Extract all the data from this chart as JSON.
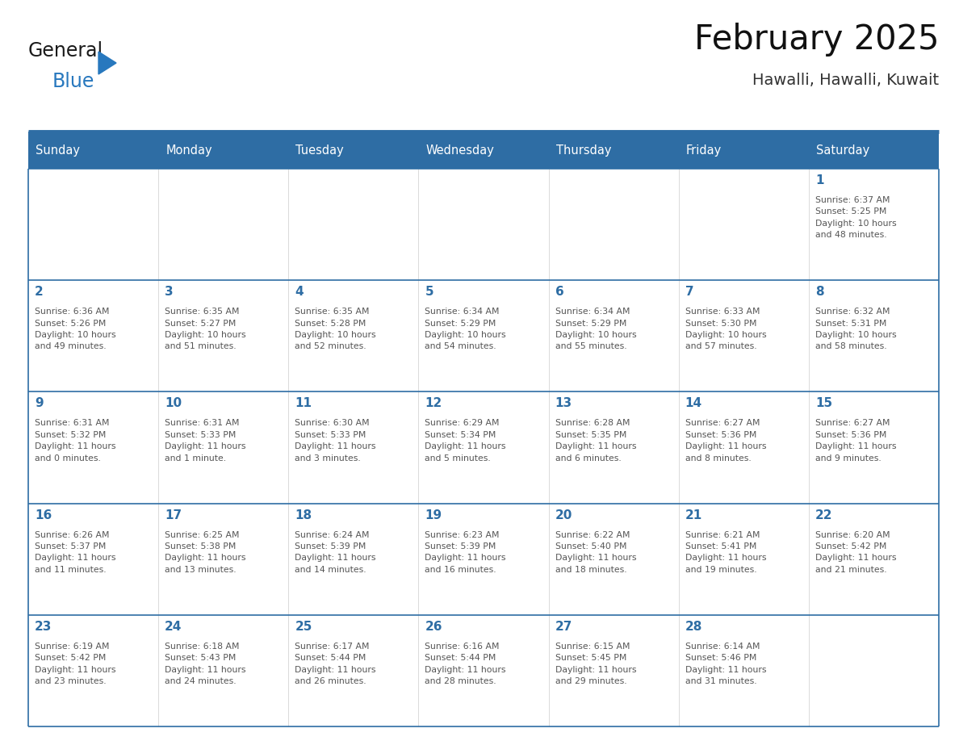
{
  "title": "February 2025",
  "subtitle": "Hawalli, Hawalli, Kuwait",
  "header_bg_color": "#2E6DA4",
  "header_text_color": "#FFFFFF",
  "cell_bg_color": "#FFFFFF",
  "day_number_color": "#2E6DA4",
  "info_text_color": "#555555",
  "border_color": "#2E6DA4",
  "days_of_week": [
    "Sunday",
    "Monday",
    "Tuesday",
    "Wednesday",
    "Thursday",
    "Friday",
    "Saturday"
  ],
  "weeks": [
    [
      {
        "day": 0,
        "info": ""
      },
      {
        "day": 0,
        "info": ""
      },
      {
        "day": 0,
        "info": ""
      },
      {
        "day": 0,
        "info": ""
      },
      {
        "day": 0,
        "info": ""
      },
      {
        "day": 0,
        "info": ""
      },
      {
        "day": 1,
        "info": "Sunrise: 6:37 AM\nSunset: 5:25 PM\nDaylight: 10 hours\nand 48 minutes."
      }
    ],
    [
      {
        "day": 2,
        "info": "Sunrise: 6:36 AM\nSunset: 5:26 PM\nDaylight: 10 hours\nand 49 minutes."
      },
      {
        "day": 3,
        "info": "Sunrise: 6:35 AM\nSunset: 5:27 PM\nDaylight: 10 hours\nand 51 minutes."
      },
      {
        "day": 4,
        "info": "Sunrise: 6:35 AM\nSunset: 5:28 PM\nDaylight: 10 hours\nand 52 minutes."
      },
      {
        "day": 5,
        "info": "Sunrise: 6:34 AM\nSunset: 5:29 PM\nDaylight: 10 hours\nand 54 minutes."
      },
      {
        "day": 6,
        "info": "Sunrise: 6:34 AM\nSunset: 5:29 PM\nDaylight: 10 hours\nand 55 minutes."
      },
      {
        "day": 7,
        "info": "Sunrise: 6:33 AM\nSunset: 5:30 PM\nDaylight: 10 hours\nand 57 minutes."
      },
      {
        "day": 8,
        "info": "Sunrise: 6:32 AM\nSunset: 5:31 PM\nDaylight: 10 hours\nand 58 minutes."
      }
    ],
    [
      {
        "day": 9,
        "info": "Sunrise: 6:31 AM\nSunset: 5:32 PM\nDaylight: 11 hours\nand 0 minutes."
      },
      {
        "day": 10,
        "info": "Sunrise: 6:31 AM\nSunset: 5:33 PM\nDaylight: 11 hours\nand 1 minute."
      },
      {
        "day": 11,
        "info": "Sunrise: 6:30 AM\nSunset: 5:33 PM\nDaylight: 11 hours\nand 3 minutes."
      },
      {
        "day": 12,
        "info": "Sunrise: 6:29 AM\nSunset: 5:34 PM\nDaylight: 11 hours\nand 5 minutes."
      },
      {
        "day": 13,
        "info": "Sunrise: 6:28 AM\nSunset: 5:35 PM\nDaylight: 11 hours\nand 6 minutes."
      },
      {
        "day": 14,
        "info": "Sunrise: 6:27 AM\nSunset: 5:36 PM\nDaylight: 11 hours\nand 8 minutes."
      },
      {
        "day": 15,
        "info": "Sunrise: 6:27 AM\nSunset: 5:36 PM\nDaylight: 11 hours\nand 9 minutes."
      }
    ],
    [
      {
        "day": 16,
        "info": "Sunrise: 6:26 AM\nSunset: 5:37 PM\nDaylight: 11 hours\nand 11 minutes."
      },
      {
        "day": 17,
        "info": "Sunrise: 6:25 AM\nSunset: 5:38 PM\nDaylight: 11 hours\nand 13 minutes."
      },
      {
        "day": 18,
        "info": "Sunrise: 6:24 AM\nSunset: 5:39 PM\nDaylight: 11 hours\nand 14 minutes."
      },
      {
        "day": 19,
        "info": "Sunrise: 6:23 AM\nSunset: 5:39 PM\nDaylight: 11 hours\nand 16 minutes."
      },
      {
        "day": 20,
        "info": "Sunrise: 6:22 AM\nSunset: 5:40 PM\nDaylight: 11 hours\nand 18 minutes."
      },
      {
        "day": 21,
        "info": "Sunrise: 6:21 AM\nSunset: 5:41 PM\nDaylight: 11 hours\nand 19 minutes."
      },
      {
        "day": 22,
        "info": "Sunrise: 6:20 AM\nSunset: 5:42 PM\nDaylight: 11 hours\nand 21 minutes."
      }
    ],
    [
      {
        "day": 23,
        "info": "Sunrise: 6:19 AM\nSunset: 5:42 PM\nDaylight: 11 hours\nand 23 minutes."
      },
      {
        "day": 24,
        "info": "Sunrise: 6:18 AM\nSunset: 5:43 PM\nDaylight: 11 hours\nand 24 minutes."
      },
      {
        "day": 25,
        "info": "Sunrise: 6:17 AM\nSunset: 5:44 PM\nDaylight: 11 hours\nand 26 minutes."
      },
      {
        "day": 26,
        "info": "Sunrise: 6:16 AM\nSunset: 5:44 PM\nDaylight: 11 hours\nand 28 minutes."
      },
      {
        "day": 27,
        "info": "Sunrise: 6:15 AM\nSunset: 5:45 PM\nDaylight: 11 hours\nand 29 minutes."
      },
      {
        "day": 28,
        "info": "Sunrise: 6:14 AM\nSunset: 5:46 PM\nDaylight: 11 hours\nand 31 minutes."
      },
      {
        "day": 0,
        "info": ""
      }
    ]
  ],
  "logo_color_general": "#1a1a1a",
  "logo_color_blue": "#2878BE",
  "logo_triangle_color": "#2878BE",
  "fig_width": 11.88,
  "fig_height": 9.18,
  "dpi": 100
}
